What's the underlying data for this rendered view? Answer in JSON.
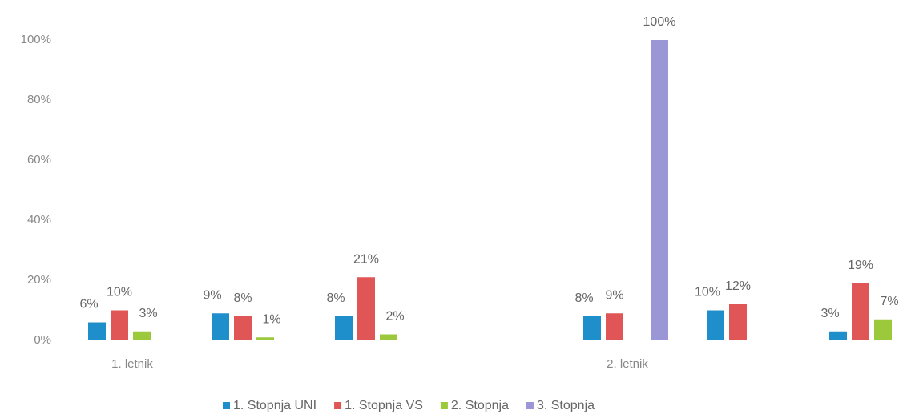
{
  "chart_data": {
    "type": "bar",
    "categories": [
      "1. letnik",
      null,
      null,
      "2. letnik",
      null,
      null
    ],
    "series": [
      {
        "name": "1. Stopnja UNI",
        "color": "#1f8fcb",
        "values": [
          6,
          9,
          8,
          8,
          10,
          3
        ],
        "value_labels": [
          "6%",
          "9%",
          "8%",
          "8%",
          "10%",
          "3%"
        ]
      },
      {
        "name": "1. Stopnja VS",
        "color": "#e05656",
        "values": [
          10,
          8,
          21,
          9,
          12,
          19
        ],
        "value_labels": [
          "10%",
          "8%",
          "21%",
          "9%",
          "12%",
          "19%"
        ]
      },
      {
        "name": "2. Stopnja",
        "color": "#9cc93b",
        "values": [
          3,
          1,
          2,
          null,
          null,
          7
        ],
        "value_labels": [
          "3%",
          "1%",
          "2%",
          null,
          null,
          "7%"
        ]
      },
      {
        "name": "3. Stopnja",
        "color": "#9b97d6",
        "values": [
          null,
          null,
          null,
          100,
          null,
          null
        ],
        "value_labels": [
          null,
          null,
          null,
          "100%",
          null,
          null
        ]
      }
    ],
    "ylim": [
      0,
      100
    ],
    "yticks": [
      {
        "value": 0,
        "label": "0%"
      },
      {
        "value": 20,
        "label": "20%"
      },
      {
        "value": 40,
        "label": "40%"
      },
      {
        "value": 60,
        "label": "60%"
      },
      {
        "value": 80,
        "label": "80%"
      },
      {
        "value": 100,
        "label": "100%"
      }
    ],
    "grid": false,
    "legend": "bottom"
  }
}
